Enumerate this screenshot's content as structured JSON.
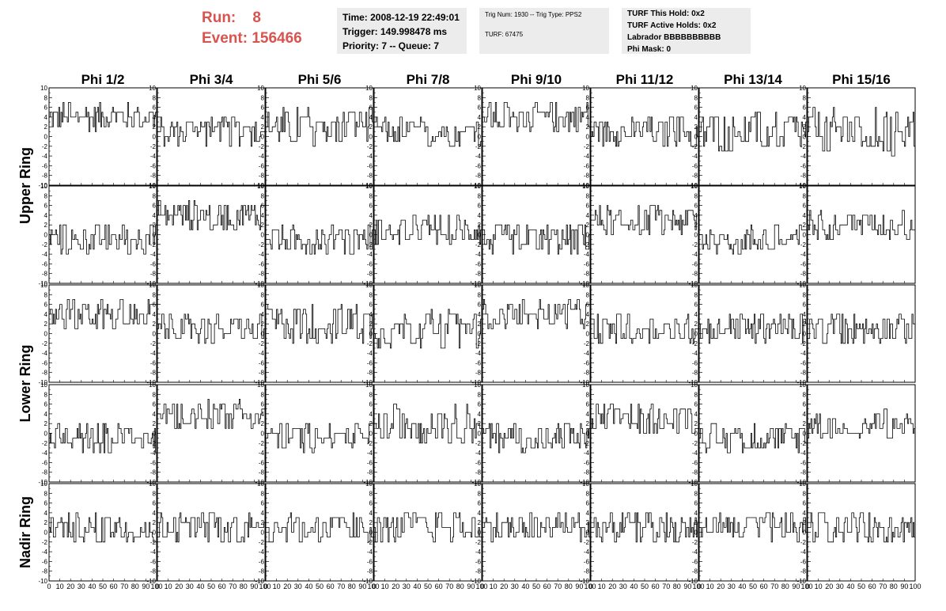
{
  "header": {
    "run_label": "Run:    8",
    "event_label": "Event: 156466"
  },
  "info_time": {
    "time": "Time: 2008-12-19 22:49:01",
    "trigger": "Trigger: 149.998478 ms",
    "priority": "Priority: 7 -- Queue: 7"
  },
  "info_trig": {
    "trig": "Trig Num: 1930 -- Trig Type: PPS2",
    "turf": "TURF: 67475"
  },
  "info_turf": {
    "this_hold": "TURF This Hold: 0x2",
    "active_holds": "TURF Active Holds: 0x2",
    "labrador": "Labrador BBBBBBBBBB",
    "phi_mask": "Phi Mask: 0"
  },
  "chart_data": {
    "type": "line",
    "grid": false,
    "columns": [
      "Phi 1/2",
      "Phi 3/4",
      "Phi 5/6",
      "Phi 7/8",
      "Phi 9/10",
      "Phi 11/12",
      "Phi 13/14",
      "Phi 15/16"
    ],
    "rings": [
      "Upper Ring",
      "Lower Ring",
      "Nadir Ring"
    ],
    "x_range": [
      0,
      100
    ],
    "y_range": [
      -10,
      10
    ],
    "y_ticks": [
      "10",
      "8",
      "6",
      "4",
      "2",
      "0",
      "-2",
      "-4",
      "-6",
      "-8",
      "-10"
    ],
    "x_ticks": [
      "0",
      "10",
      "20",
      "30",
      "40",
      "50",
      "60",
      "70",
      "80",
      "90",
      "100"
    ],
    "panels": [
      [
        {
          "baseline": 4,
          "spread": 3
        },
        {
          "baseline": 1,
          "spread": 3
        },
        {
          "baseline": 2,
          "spread": 4
        },
        {
          "baseline": 1,
          "spread": 3
        },
        {
          "baseline": 4,
          "spread": 3
        },
        {
          "baseline": 1,
          "spread": 3
        },
        {
          "baseline": 1,
          "spread": 4
        },
        {
          "baseline": 1,
          "spread": 5
        }
      ],
      [
        {
          "baseline": -1,
          "spread": 3
        },
        {
          "baseline": 4,
          "spread": 3
        },
        {
          "baseline": -1,
          "spread": 3
        },
        {
          "baseline": 1,
          "spread": 3
        },
        {
          "baseline": -1,
          "spread": 3
        },
        {
          "baseline": 3,
          "spread": 3
        },
        {
          "baseline": -1,
          "spread": 3
        },
        {
          "baseline": 2,
          "spread": 3
        }
      ],
      [
        {
          "baseline": 4,
          "spread": 3
        },
        {
          "baseline": 1,
          "spread": 3
        },
        {
          "baseline": 2,
          "spread": 4
        },
        {
          "baseline": 1,
          "spread": 4
        },
        {
          "baseline": 4,
          "spread": 3
        },
        {
          "baseline": 1,
          "spread": 3
        },
        {
          "baseline": 1,
          "spread": 3
        },
        {
          "baseline": 1,
          "spread": 3
        }
      ],
      [
        {
          "baseline": -1,
          "spread": 3
        },
        {
          "baseline": 4,
          "spread": 3
        },
        {
          "baseline": -1,
          "spread": 3
        },
        {
          "baseline": 2,
          "spread": 4
        },
        {
          "baseline": -1,
          "spread": 3
        },
        {
          "baseline": 3,
          "spread": 3
        },
        {
          "baseline": -1,
          "spread": 3
        },
        {
          "baseline": 2,
          "spread": 3
        }
      ],
      [
        {
          "baseline": 1,
          "spread": 3
        },
        {
          "baseline": 1,
          "spread": 3
        },
        {
          "baseline": 1,
          "spread": 3
        },
        {
          "baseline": 1,
          "spread": 3
        },
        {
          "baseline": 1,
          "spread": 3
        },
        {
          "baseline": 1,
          "spread": 3
        },
        {
          "baseline": 1,
          "spread": 3
        },
        {
          "baseline": 1,
          "spread": 3
        }
      ]
    ]
  }
}
